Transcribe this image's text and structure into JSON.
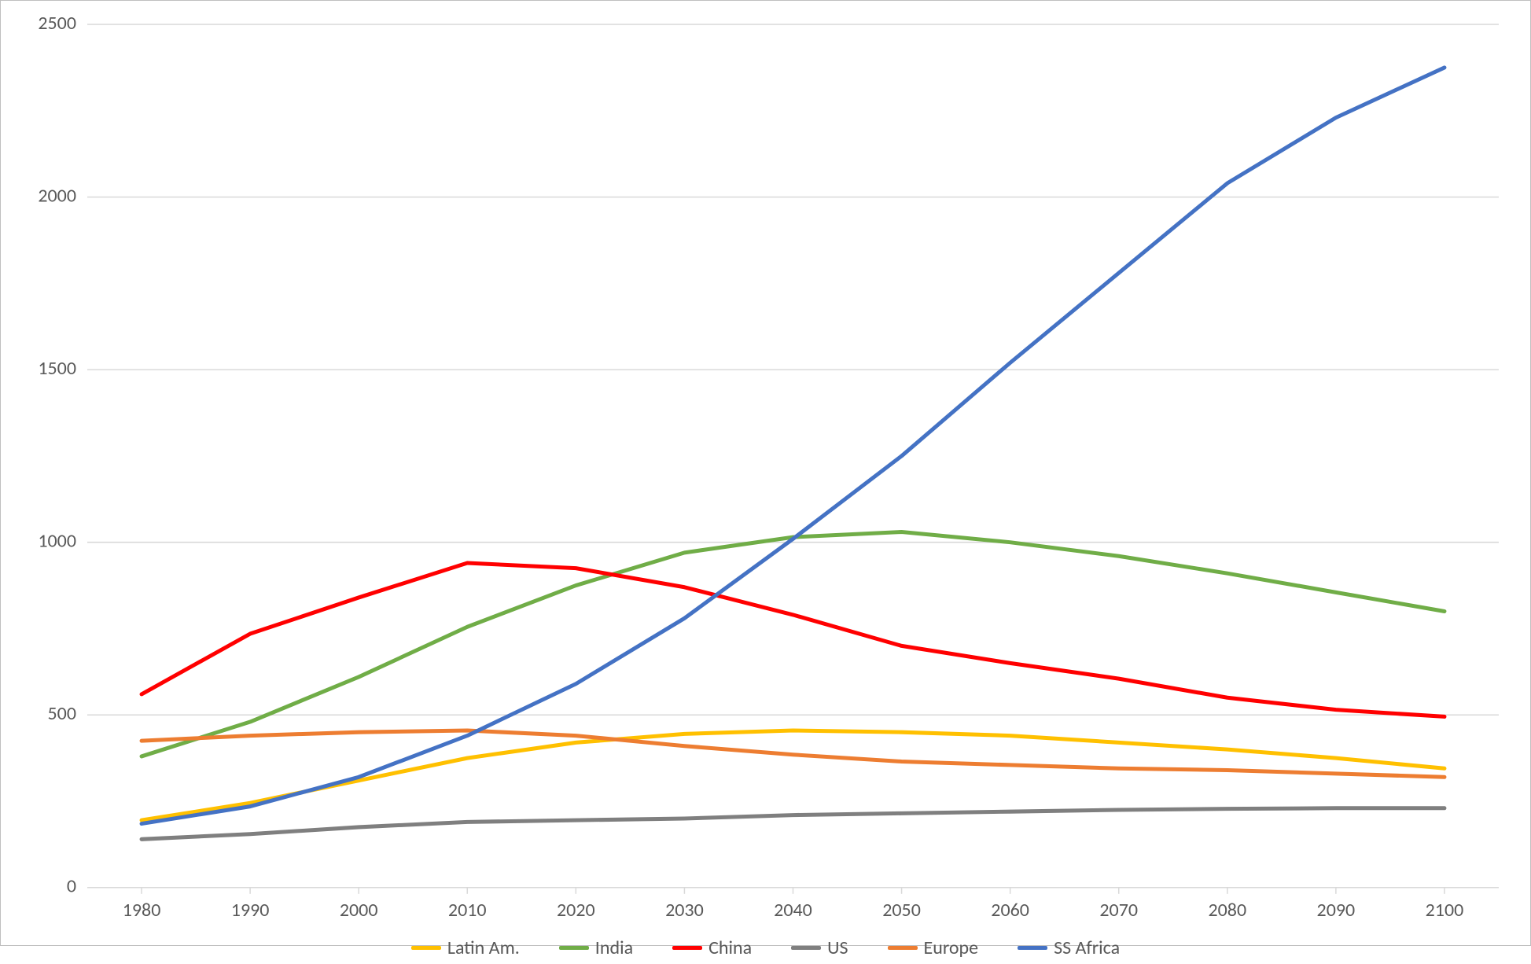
{
  "chart": {
    "type": "line",
    "background_color": "#ffffff",
    "border_color": "#bfbfbf",
    "grid_color": "#d9d9d9",
    "axis_text_color": "#595959",
    "tick_fontsize": 24,
    "legend_fontsize": 24,
    "line_width": 5,
    "x_categories": [
      "1980",
      "1990",
      "2000",
      "2010",
      "2020",
      "2030",
      "2040",
      "2050",
      "2060",
      "2070",
      "2080",
      "2090",
      "2100"
    ],
    "y": {
      "min": 0,
      "max": 2500,
      "step": 500
    },
    "series": [
      {
        "key": "latin_am",
        "label": "Latin Am.",
        "color": "#ffc000",
        "values": [
          195,
          245,
          310,
          375,
          420,
          445,
          455,
          450,
          440,
          420,
          400,
          375,
          345
        ]
      },
      {
        "key": "india",
        "label": "India",
        "color": "#70ad47",
        "values": [
          380,
          480,
          610,
          755,
          875,
          970,
          1015,
          1030,
          1000,
          960,
          910,
          855,
          800
        ]
      },
      {
        "key": "china",
        "label": "China",
        "color": "#ff0000",
        "values": [
          560,
          735,
          840,
          940,
          925,
          870,
          790,
          700,
          650,
          605,
          550,
          515,
          495
        ]
      },
      {
        "key": "us",
        "label": "US",
        "color": "#7f7f7f",
        "values": [
          140,
          155,
          175,
          190,
          195,
          200,
          210,
          215,
          220,
          225,
          228,
          230,
          230
        ]
      },
      {
        "key": "europe",
        "label": "Europe",
        "color": "#ed7d31",
        "values": [
          425,
          440,
          450,
          455,
          440,
          410,
          385,
          365,
          355,
          345,
          340,
          330,
          320
        ]
      },
      {
        "key": "ss_africa",
        "label": "SS Africa",
        "color": "#4472c4",
        "values": [
          185,
          235,
          320,
          440,
          590,
          780,
          1010,
          1250,
          1520,
          1780,
          2040,
          2230,
          2375
        ]
      }
    ]
  }
}
